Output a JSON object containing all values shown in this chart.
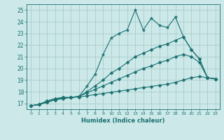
{
  "xlabel": "Humidex (Indice chaleur)",
  "ylabel": "",
  "background_color": "#cce8e8",
  "grid_color": "#aacccc",
  "line_color": "#1a7070",
  "xlim": [
    -0.5,
    23.5
  ],
  "ylim": [
    16.5,
    25.5
  ],
  "yticks": [
    17,
    18,
    19,
    20,
    21,
    22,
    23,
    24,
    25
  ],
  "xticks": [
    0,
    1,
    2,
    3,
    4,
    5,
    6,
    7,
    8,
    9,
    10,
    11,
    12,
    13,
    14,
    15,
    16,
    17,
    18,
    19,
    20,
    21,
    22,
    23
  ],
  "lines": [
    {
      "x": [
        0,
        1,
        2,
        3,
        4,
        5,
        6,
        7,
        8,
        9,
        10,
        11,
        12,
        13,
        14,
        15,
        16,
        17,
        18,
        19,
        20,
        21,
        22,
        23
      ],
      "y": [
        16.8,
        16.9,
        17.2,
        17.4,
        17.5,
        17.5,
        17.6,
        18.5,
        19.5,
        21.2,
        22.6,
        23.0,
        23.3,
        25.0,
        23.3,
        24.3,
        23.7,
        23.5,
        24.4,
        22.7,
        21.6,
        20.8,
        19.2,
        19.1
      ],
      "marker": "*",
      "markersize": 3.5
    },
    {
      "x": [
        0,
        1,
        2,
        3,
        4,
        5,
        6,
        7,
        8,
        9,
        10,
        11,
        12,
        13,
        14,
        15,
        16,
        17,
        18,
        19,
        20,
        21,
        22,
        23
      ],
      "y": [
        16.8,
        16.9,
        17.2,
        17.4,
        17.5,
        17.5,
        17.6,
        18.0,
        18.5,
        19.0,
        19.6,
        20.0,
        20.5,
        21.0,
        21.3,
        21.6,
        21.9,
        22.1,
        22.4,
        22.7,
        21.6,
        20.8,
        19.2,
        19.1
      ],
      "marker": "D",
      "markersize": 2.5
    },
    {
      "x": [
        0,
        1,
        2,
        3,
        4,
        5,
        6,
        7,
        8,
        9,
        10,
        11,
        12,
        13,
        14,
        15,
        16,
        17,
        18,
        19,
        20,
        21,
        22,
        23
      ],
      "y": [
        16.8,
        16.9,
        17.1,
        17.3,
        17.5,
        17.5,
        17.6,
        17.9,
        18.2,
        18.5,
        18.8,
        19.1,
        19.4,
        19.7,
        20.0,
        20.2,
        20.5,
        20.7,
        21.0,
        21.2,
        21.0,
        20.5,
        19.2,
        19.1
      ],
      "marker": "D",
      "markersize": 2.5
    },
    {
      "x": [
        0,
        1,
        2,
        3,
        4,
        5,
        6,
        7,
        8,
        9,
        10,
        11,
        12,
        13,
        14,
        15,
        16,
        17,
        18,
        19,
        20,
        21,
        22,
        23
      ],
      "y": [
        16.8,
        16.9,
        17.1,
        17.3,
        17.4,
        17.5,
        17.55,
        17.65,
        17.75,
        17.85,
        17.95,
        18.05,
        18.15,
        18.25,
        18.35,
        18.45,
        18.55,
        18.65,
        18.8,
        19.0,
        19.2,
        19.3,
        19.2,
        19.1
      ],
      "marker": "D",
      "markersize": 2.5
    }
  ]
}
